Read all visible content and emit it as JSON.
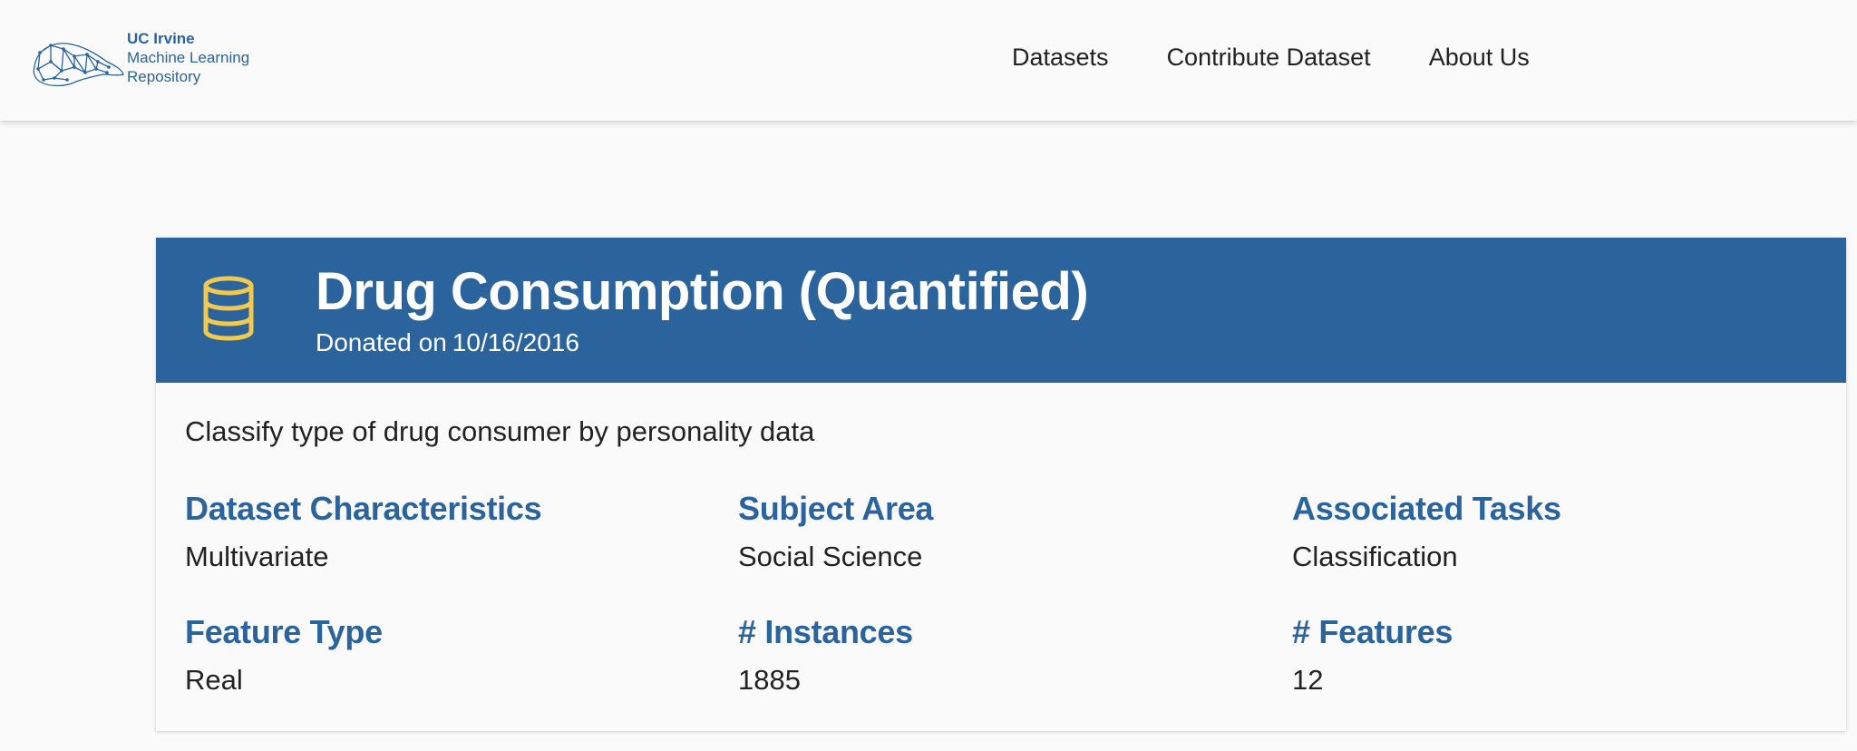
{
  "brand": {
    "line1": "UC Irvine",
    "line2": "Machine Learning",
    "line3": "Repository",
    "color": "#2a64a0"
  },
  "nav": {
    "items": [
      {
        "label": "Datasets"
      },
      {
        "label": "Contribute Dataset"
      },
      {
        "label": "About Us"
      }
    ]
  },
  "dataset": {
    "icon": "database-icon",
    "title": "Drug Consumption (Quantified)",
    "donated_prefix": "Donated on",
    "donated_date": "10/16/2016",
    "summary": "Classify type of drug consumer by personality data",
    "header_color": "#2b649d",
    "icon_color": "#f2c94c",
    "characteristics": [
      {
        "label": "Dataset Characteristics",
        "value": "Multivariate"
      },
      {
        "label": "Subject Area",
        "value": "Social Science"
      },
      {
        "label": "Associated Tasks",
        "value": "Classification"
      },
      {
        "label": "Feature Type",
        "value": "Real"
      },
      {
        "label": "# Instances",
        "value": "1885"
      },
      {
        "label": "# Features",
        "value": "12"
      }
    ]
  }
}
